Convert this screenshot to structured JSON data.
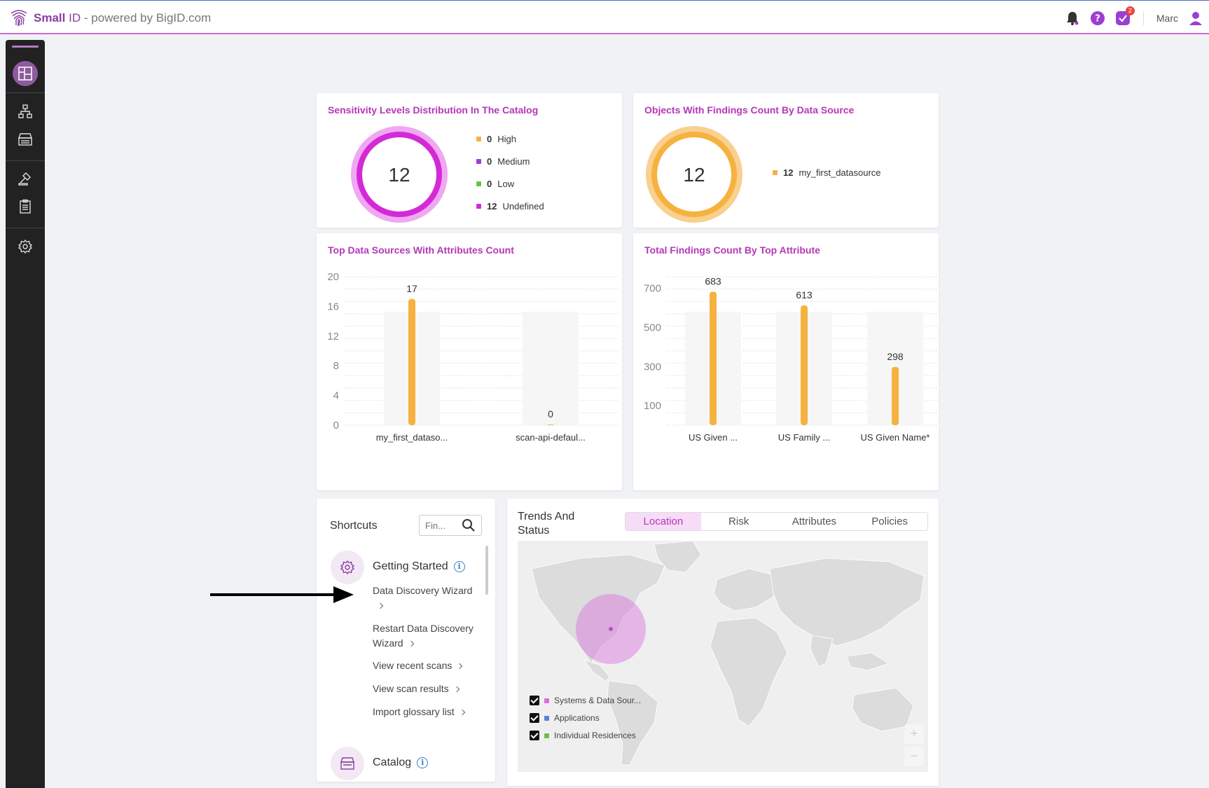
{
  "header": {
    "brand_main": "Small",
    "brand_id": "ID",
    "brand_sep": "-",
    "brand_powered": "powered by BigID.com",
    "tasks_badge": "2",
    "user_name": "Marc",
    "icons": [
      "bell-icon",
      "help-icon",
      "tasks-icon",
      "user-icon"
    ],
    "colors": {
      "accent": "#b537b8",
      "help": "#9b3fd1",
      "badge": "#e64545"
    }
  },
  "sidebar": {
    "items": [
      "dashboard-icon",
      "data-sources-icon",
      "catalog-icon",
      "policies-icon",
      "reports-icon",
      "settings-icon"
    ]
  },
  "sensitivity": {
    "title": "Sensitivity Levels Distribution In The Catalog",
    "total": "12",
    "legend": [
      {
        "count": "0",
        "label": "High",
        "color": "#f5b23e"
      },
      {
        "count": "0",
        "label": "Medium",
        "color": "#9b3fd1"
      },
      {
        "count": "0",
        "label": "Low",
        "color": "#6ac04a"
      },
      {
        "count": "12",
        "label": "Undefined",
        "color": "#d42ad6"
      }
    ]
  },
  "objects": {
    "title": "Objects With Findings Count By Data Source",
    "total": "12",
    "legend": [
      {
        "count": "12",
        "label": "my_first_datasource",
        "color": "#f5b23e"
      }
    ]
  },
  "chart_data": [
    {
      "type": "bar",
      "title": "Top Data Sources With Attributes Count",
      "categories": [
        "my_first_dataso...",
        "scan-api-defaul..."
      ],
      "values": [
        17,
        0
      ],
      "yticks": [
        0,
        4,
        8,
        12,
        16,
        20
      ],
      "ylim": [
        0,
        20
      ],
      "bar_color": "#f5b23e",
      "grid": true
    },
    {
      "type": "bar",
      "title": "Total Findings Count By Top Attribute",
      "categories": [
        "US Given ...",
        "US Family ...",
        "US Given Name*"
      ],
      "values": [
        683,
        613,
        298
      ],
      "yticks": [
        100,
        300,
        500,
        700
      ],
      "ylim": [
        0,
        700
      ],
      "bar_color": "#f5b23e",
      "grid": true
    }
  ],
  "shortcuts": {
    "title": "Shortcuts",
    "search_placeholder": "Fin...",
    "group1": "Getting Started",
    "links": [
      "Data Discovery Wizard",
      "Restart Data Discovery Wizard",
      "View recent scans",
      "View scan results",
      "Import glossary list"
    ],
    "group2": "Catalog"
  },
  "trends": {
    "title": "Trends And Status",
    "tabs": [
      "Location",
      "Risk",
      "Attributes",
      "Policies"
    ],
    "active_tab": "Location",
    "legend": [
      {
        "label": "Systems & Data Sour...",
        "color": "#d96ee0"
      },
      {
        "label": "Applications",
        "color": "#5b7fe0"
      },
      {
        "label": "Individual Residences",
        "color": "#6ac04a"
      }
    ],
    "zoom_in": "+",
    "zoom_out": "−"
  }
}
